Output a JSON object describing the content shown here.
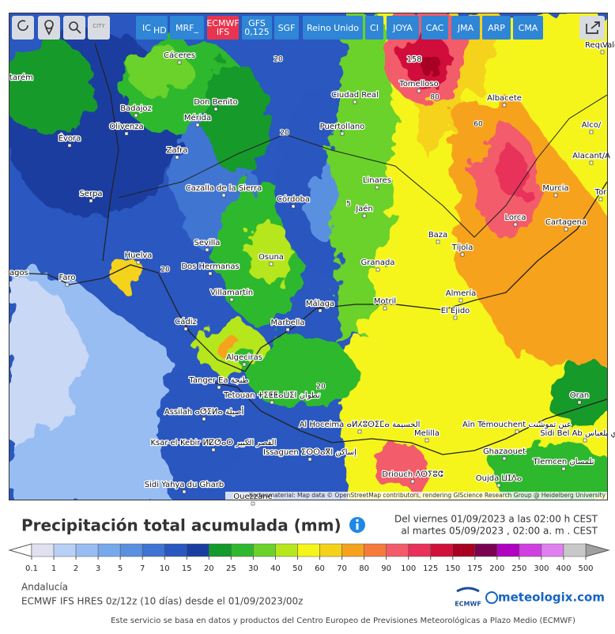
{
  "toolbar": {
    "icon_label": "CITY",
    "buttons": [
      {
        "text": "IC",
        "sub": "HD"
      },
      {
        "text": "MRF_"
      },
      {
        "text": "ECMWF",
        "sub": "IFS"
      },
      {
        "text": "GFS",
        "sub": "0,125"
      },
      {
        "text": "SGF"
      },
      {
        "text": "Reino Unido"
      },
      {
        "text": "CI"
      },
      {
        "text": "JOYA"
      },
      {
        "text": "CAC"
      },
      {
        "text": "JMA"
      },
      {
        "text": "ARP"
      },
      {
        "text": "CMA"
      }
    ]
  },
  "map": {
    "cities": [
      "Cáceres",
      "Requena",
      "Vale",
      "Tomelloso",
      "Ciudad Real",
      "tarém",
      "Badajoz",
      "Don Benito",
      "Albacete",
      "Olivenza",
      "Mérida",
      "Puertollano",
      "Alco/",
      "Évora",
      "Zafra",
      "Alacant/A",
      "Linares",
      "Cazalla de la Sierra",
      "Murcia",
      "Tor",
      "Serpa",
      "Córdoba",
      "Jaén",
      "Lorca",
      "Cartagena",
      "Baza",
      "Sevilla",
      "Osuna",
      "Tíjola",
      "Granada",
      "Huelva",
      "agos",
      "Dos Hermanas",
      "Faro",
      "Villamartín",
      "Almería",
      "Málaga",
      "Motril",
      "El Ejido",
      "Cádiz",
      "Marbella",
      "Algeciras",
      "Tanger Ea طنجة",
      "Assilah ⴰⵚⵉⵍⴰ أصيلة",
      "Tetouan ⵜⵉⵟⵟⴰⵡⵉⵏ تطوان",
      "Oran",
      "Al Hoceima ⴰⵍⵃⵓⵙⵉⵎⴰ الحسيمة",
      "Aïn Témouchent عين تموشنت",
      "Sidi Bel Ab سيدي بلعباس",
      "Ksar-el-Kebir ⵍⵇⵚⴰⵔ القصر الكبير",
      "Melilla",
      "Issaguen ⵉⵙⵙⴰⴳⵏ إساكن",
      "Ghazaouet",
      "Tlemcen تلمسان",
      "Driouch ⴷⵔⵢⵓⵛ",
      "Oujda ⵡⵊⴷⴰ",
      "Sidi Yahya du Gharb",
      "Ouezzane"
    ],
    "max_label": "158",
    "contour_labels": [
      "20",
      "80",
      "60",
      "5",
      "20",
      "20",
      "20"
    ],
    "attribution": "Kartenmaterial: Map data © OpenStreetMap contributors, rendering GIScience Research Group @ Heidelberg University"
  },
  "header": {
    "title": "Precipitación total acumulada (mm)",
    "date_from": "Del viernes 01/09/2023 a  las 02:00 h  CEST",
    "date_to": "al martes 05/09/2023 , 02:00 a. m . CEST"
  },
  "legend": {
    "ticks": [
      0.1,
      1,
      2,
      3,
      5,
      7,
      10,
      15,
      20,
      25,
      30,
      40,
      50,
      60,
      70,
      80,
      90,
      100,
      125,
      150,
      175,
      200,
      250,
      300,
      400,
      500
    ],
    "colors": [
      "#e0e0f0",
      "#b8d0f5",
      "#98bdf2",
      "#78a8ec",
      "#5a90e0",
      "#3f74d2",
      "#2a57c0",
      "#1a3ea0",
      "#139a2c",
      "#2fb82f",
      "#6bd22a",
      "#b6e61c",
      "#f5f51a",
      "#f5d21a",
      "#f7a21e",
      "#f57b3c",
      "#f35b6a",
      "#e8305a",
      "#d0103a",
      "#a80020",
      "#7a0050",
      "#b000c0",
      "#d040e0",
      "#e080f0",
      "#c8c8c8"
    ]
  },
  "footer": {
    "region": "Andalucía",
    "model": "ECMWF IFS HRES 0z/12z (10 días) desde el 01/09/2023/00z",
    "ecmwf_logo": "ECMWF",
    "brand": "meteologix.com",
    "notice": "Este servicio se basa en datos y productos del Centro Europeo de Previsiones Meteorológicas a Plazo Medio (ECMWF)"
  }
}
